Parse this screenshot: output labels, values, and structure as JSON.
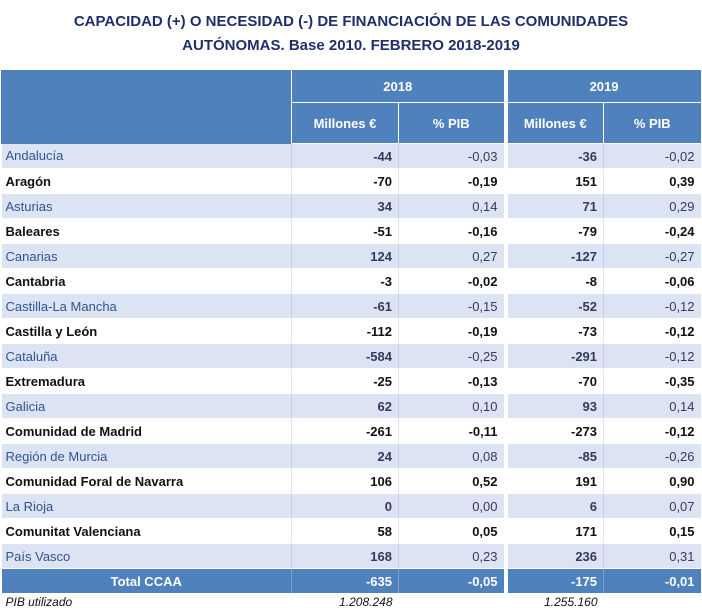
{
  "title": {
    "line1": "CAPACIDAD (+) O NECESIDAD (-) DE FINANCIACIÓN DE LAS COMUNIDADES",
    "line2": "AUTÓNOMAS. Base 2010. FEBRERO 2018-2019"
  },
  "header": {
    "year_2018": "2018",
    "year_2019": "2019",
    "millones": "Millones €",
    "pib": "% PIB"
  },
  "rows": [
    {
      "name": "Andalucía",
      "m2018": "-44",
      "p2018": "-0,03",
      "m2019": "-36",
      "p2019": "-0,02"
    },
    {
      "name": "Aragón",
      "m2018": "-70",
      "p2018": "-0,19",
      "m2019": "151",
      "p2019": "0,39"
    },
    {
      "name": "Asturias",
      "m2018": "34",
      "p2018": "0,14",
      "m2019": "71",
      "p2019": "0,29"
    },
    {
      "name": "Baleares",
      "m2018": "-51",
      "p2018": "-0,16",
      "m2019": "-79",
      "p2019": "-0,24"
    },
    {
      "name": "Canarias",
      "m2018": "124",
      "p2018": "0,27",
      "m2019": "-127",
      "p2019": "-0,27"
    },
    {
      "name": "Cantabria",
      "m2018": "-3",
      "p2018": "-0,02",
      "m2019": "-8",
      "p2019": "-0,06"
    },
    {
      "name": "Castilla-La Mancha",
      "m2018": "-61",
      "p2018": "-0,15",
      "m2019": "-52",
      "p2019": "-0,12"
    },
    {
      "name": "Castilla y León",
      "m2018": "-112",
      "p2018": "-0,19",
      "m2019": "-73",
      "p2019": "-0,12"
    },
    {
      "name": "Cataluña",
      "m2018": "-584",
      "p2018": "-0,25",
      "m2019": "-291",
      "p2019": "-0,12"
    },
    {
      "name": "Extremadura",
      "m2018": "-25",
      "p2018": "-0,13",
      "m2019": "-70",
      "p2019": "-0,35"
    },
    {
      "name": "Galicia",
      "m2018": "62",
      "p2018": "0,10",
      "m2019": "93",
      "p2019": "0,14"
    },
    {
      "name": "Comunidad de Madrid",
      "m2018": "-261",
      "p2018": "-0,11",
      "m2019": "-273",
      "p2019": "-0,12"
    },
    {
      "name": "Región de Murcia",
      "m2018": "24",
      "p2018": "0,08",
      "m2019": "-85",
      "p2019": "-0,26"
    },
    {
      "name": "Comunidad Foral de Navarra",
      "m2018": "106",
      "p2018": "0,52",
      "m2019": "191",
      "p2019": "0,90"
    },
    {
      "name": "La Rioja",
      "m2018": "0",
      "p2018": "0,00",
      "m2019": "6",
      "p2019": "0,07"
    },
    {
      "name": "Comunitat Valenciana",
      "m2018": "58",
      "p2018": "0,05",
      "m2019": "171",
      "p2019": "0,15"
    },
    {
      "name": "País Vasco",
      "m2018": "168",
      "p2018": "0,23",
      "m2019": "236",
      "p2019": "0,31"
    }
  ],
  "total": {
    "name": "Total CCAA",
    "m2018": "-635",
    "p2018": "-0,05",
    "m2019": "-175",
    "p2019": "-0,01"
  },
  "pib_row": {
    "label": "PIB utilizado",
    "v2018": "1.208.248",
    "v2019": "1.255.160"
  },
  "colors": {
    "header_blue": "#4f81bd",
    "band_light": "#dce3f2",
    "title_navy": "#1f2f6b"
  }
}
